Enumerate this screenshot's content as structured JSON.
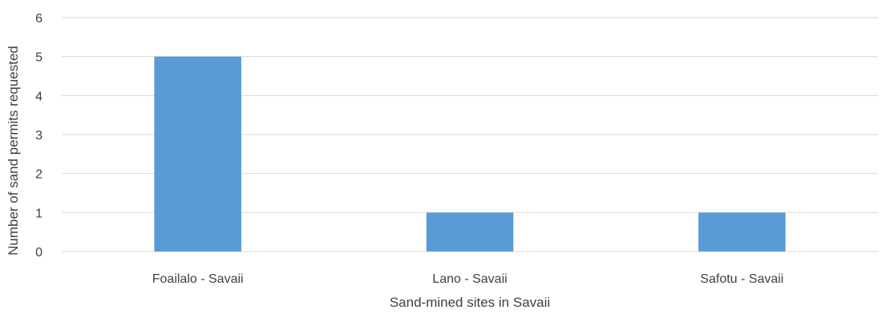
{
  "chart_data": {
    "type": "bar",
    "title": "",
    "xlabel": "Sand-mined sites in Savaii",
    "ylabel": "Number of sand permits requested",
    "categories": [
      "Foailalo - Savaii",
      "Lano - Savaii",
      "Safotu - Savaii"
    ],
    "values": [
      5,
      1,
      1
    ],
    "ylim": [
      0,
      6
    ],
    "yticks": [
      0,
      1,
      2,
      3,
      4,
      5,
      6
    ],
    "grid": true,
    "legend": "none",
    "bar_color": "#5b9bd5",
    "grid_color": "#d9d9d9",
    "text_color": "#404040"
  }
}
